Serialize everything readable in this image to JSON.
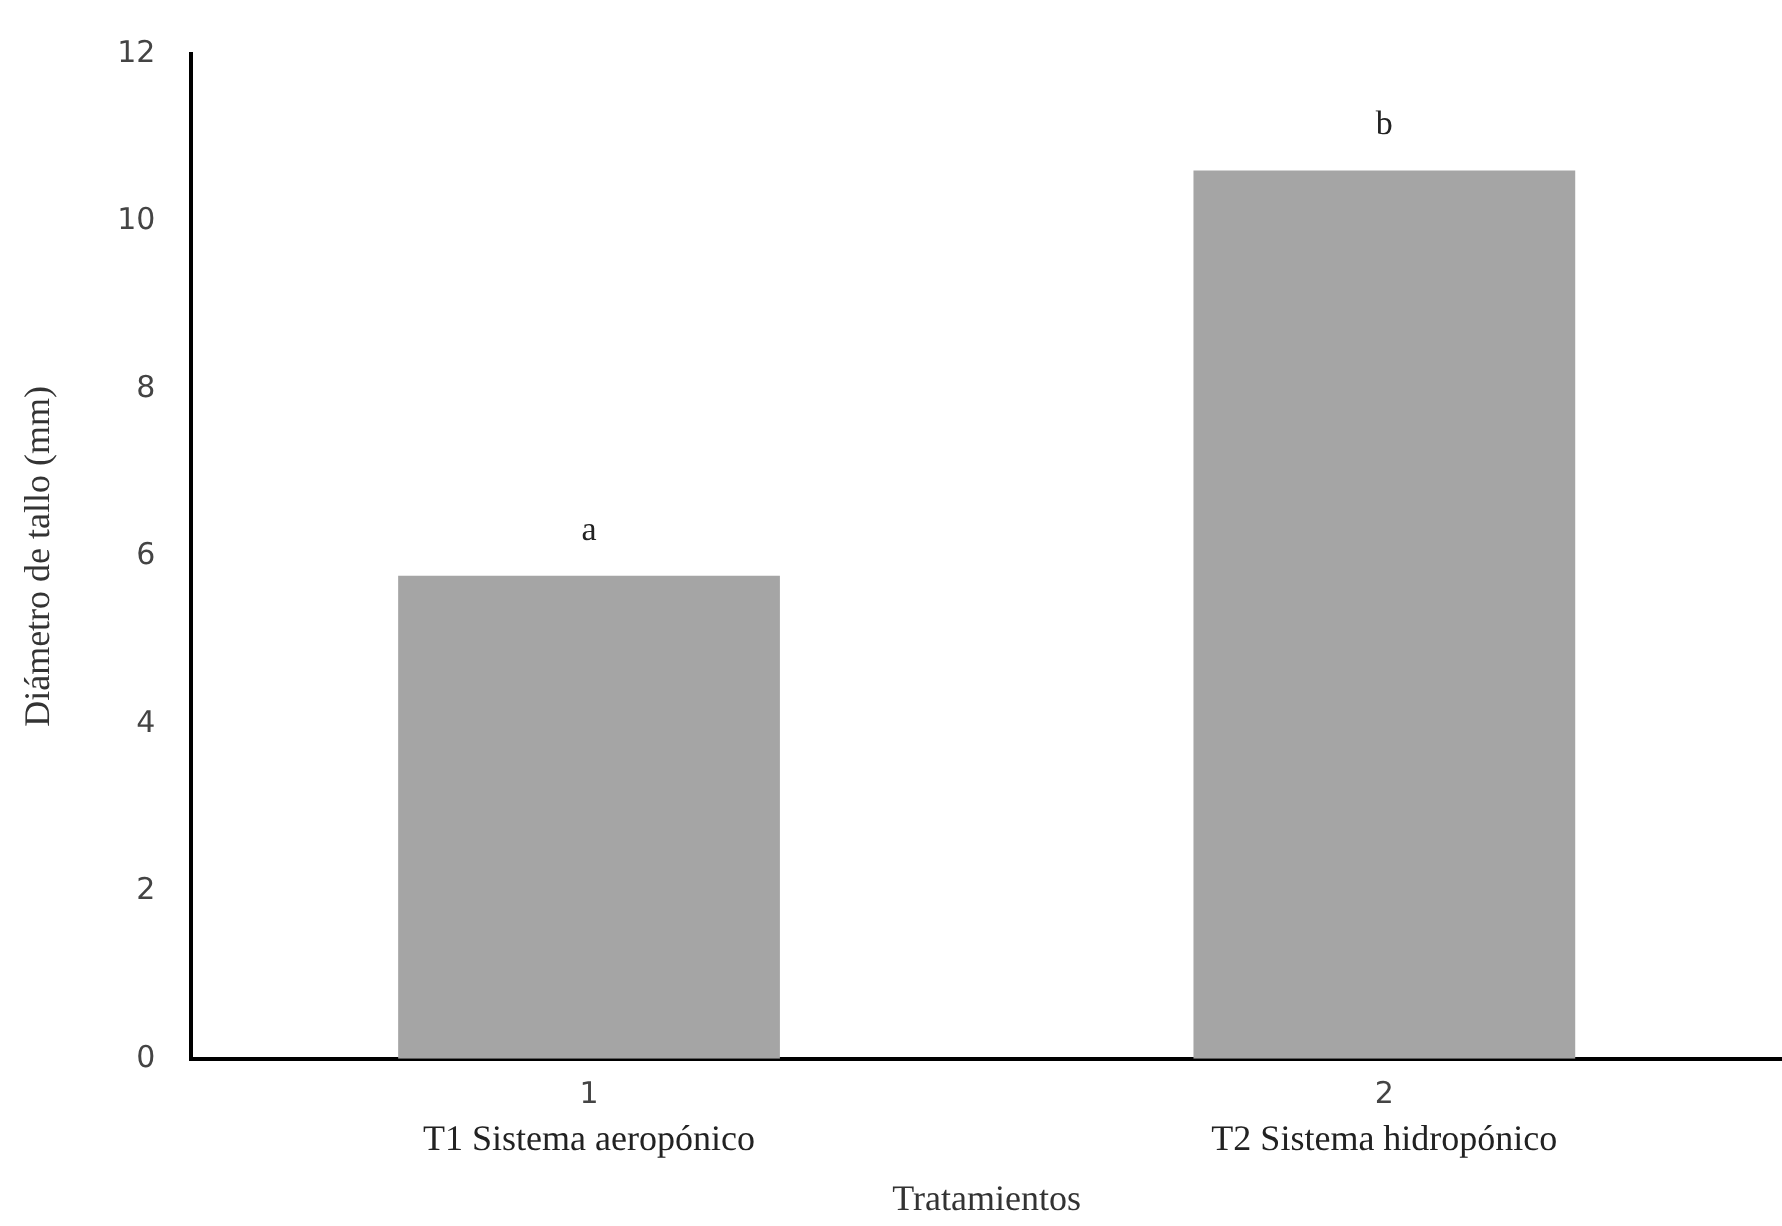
{
  "chart_data": {
    "type": "bar",
    "xlabel": "Tratamientos",
    "ylabel": "Diámetro de tallo (mm)",
    "categories": [
      "1",
      "2"
    ],
    "values": [
      5.77,
      10.61
    ],
    "color": "#a5a5a5",
    "ylim": [
      0,
      12
    ],
    "yticks": [
      0,
      2,
      4,
      6,
      8,
      10,
      12
    ],
    "grid": false,
    "legend": false,
    "annotations": [
      {
        "text": "a",
        "x": "1",
        "y": 5.77
      },
      {
        "text": "b",
        "x": "2",
        "y": 10.61
      },
      "T1 Sistema aeropónico",
      "T2 Sistema hidropónico"
    ]
  }
}
